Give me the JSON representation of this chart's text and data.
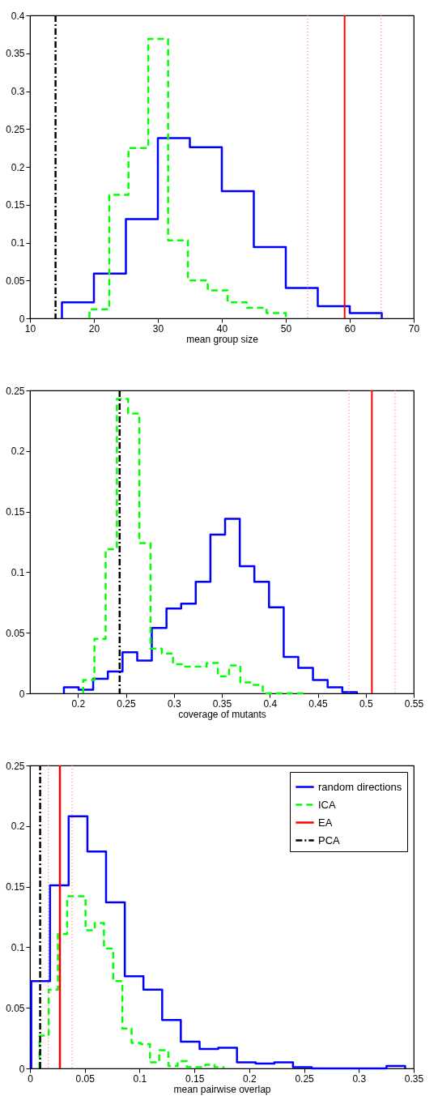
{
  "chart_data": [
    {
      "type": "step",
      "xlabel": "mean group size",
      "xlim": [
        10,
        70
      ],
      "xticks": [
        10,
        20,
        30,
        40,
        50,
        60,
        70
      ],
      "ylim": [
        0,
        0.4
      ],
      "yticks": [
        0,
        0.05,
        0.1,
        0.15,
        0.2,
        0.25,
        0.3,
        0.35,
        0.4
      ],
      "series": [
        {
          "color": "#0000ff",
          "line_style": "solid",
          "x": [
            15,
            15,
            20,
            25,
            30,
            35,
            40,
            45,
            50,
            55,
            60,
            65
          ],
          "values": [
            0,
            0.021,
            0.059,
            0.131,
            0.238,
            0.226,
            0.168,
            0.094,
            0.04,
            0.016,
            0.007,
            0
          ]
        },
        {
          "color": "#00ff00",
          "line_style": "dashed",
          "x": [
            19.3,
            19.3,
            22.4,
            25.4,
            28.5,
            31.6,
            34.7,
            37.8,
            40.9,
            43.9,
            47.0,
            50.0
          ],
          "values": [
            0,
            0.012,
            0.163,
            0.225,
            0.369,
            0.103,
            0.05,
            0.037,
            0.021,
            0.014,
            0.007,
            0
          ]
        }
      ],
      "ref_lines": [
        {
          "axis": "x",
          "value": 14.0,
          "color": "#000000",
          "line_style": "dashdot"
        },
        {
          "axis": "x",
          "value": 53.4,
          "color": "#ff6666",
          "line_style": "dotted"
        },
        {
          "axis": "x",
          "value": 59.2,
          "color": "#ff0000",
          "line_style": "solid"
        },
        {
          "axis": "x",
          "value": 64.9,
          "color": "#ff6666",
          "line_style": "dotted"
        }
      ]
    },
    {
      "type": "step",
      "xlabel": "coverage of mutants",
      "xlim": [
        0.15,
        0.55
      ],
      "xticks": [
        0.2,
        0.25,
        0.3,
        0.35,
        0.4,
        0.45,
        0.5,
        0.55
      ],
      "ylim": [
        0,
        0.25
      ],
      "yticks": [
        0,
        0.05,
        0.1,
        0.15,
        0.2,
        0.25
      ],
      "series": [
        {
          "color": "#0000ff",
          "line_style": "solid",
          "x": [
            0.1854,
            0.1854,
            0.2007,
            0.2159,
            0.2312,
            0.2465,
            0.2618,
            0.277,
            0.2923,
            0.3076,
            0.3228,
            0.3381,
            0.3534,
            0.3687,
            0.3839,
            0.3992,
            0.4145,
            0.4297,
            0.445,
            0.4603,
            0.4756,
            0.4908
          ],
          "values": [
            0,
            0.005,
            0.003,
            0.012,
            0.018,
            0.034,
            0.027,
            0.054,
            0.07,
            0.074,
            0.092,
            0.131,
            0.144,
            0.105,
            0.092,
            0.071,
            0.03,
            0.021,
            0.011,
            0.005,
            0.001,
            0
          ]
        },
        {
          "color": "#00ff00",
          "line_style": "dashed",
          "x": [
            0.2055,
            0.2055,
            0.2172,
            0.2289,
            0.2406,
            0.2523,
            0.264,
            0.2757,
            0.2874,
            0.2991,
            0.3108,
            0.3225,
            0.3342,
            0.3459,
            0.3576,
            0.3693,
            0.381,
            0.3927,
            0.4044,
            0.4161,
            0.4278,
            0.4395
          ],
          "values": [
            0,
            0.011,
            0.045,
            0.119,
            0.243,
            0.231,
            0.124,
            0.037,
            0.033,
            0.024,
            0.022,
            0.022,
            0.025,
            0.014,
            0.023,
            0.009,
            0.007,
            0,
            0,
            0,
            0,
            0
          ]
        }
      ],
      "ref_lines": [
        {
          "axis": "x",
          "value": 0.2435,
          "color": "#000000",
          "line_style": "dashdot"
        },
        {
          "axis": "x",
          "value": 0.4825,
          "color": "#ff6666",
          "line_style": "dotted"
        },
        {
          "axis": "x",
          "value": 0.5064,
          "color": "#ff0000",
          "line_style": "solid"
        },
        {
          "axis": "x",
          "value": 0.5306,
          "color": "#ff6666",
          "line_style": "dotted"
        }
      ]
    },
    {
      "type": "step",
      "xlabel": "mean pairwise overlap",
      "xlim": [
        0,
        0.35
      ],
      "xticks": [
        0,
        0.05,
        0.1,
        0.15,
        0.2,
        0.25,
        0.3,
        0.35
      ],
      "ylim": [
        0,
        0.25
      ],
      "yticks": [
        0,
        0.05,
        0.1,
        0.15,
        0.2,
        0.25
      ],
      "legend": "top right",
      "series": [
        {
          "name": "random directions",
          "color": "#0000ff",
          "line_style": "solid",
          "x": [
            0.0012,
            0.0012,
            0.0183,
            0.0353,
            0.0524,
            0.0694,
            0.0865,
            0.1035,
            0.1206,
            0.1376,
            0.1547,
            0.1717,
            0.1888,
            0.2058,
            0.2229,
            0.2399,
            0.257,
            0.274,
            0.2911,
            0.3081,
            0.3252,
            0.3422
          ],
          "values": [
            0,
            0.072,
            0.151,
            0.208,
            0.179,
            0.137,
            0.076,
            0.065,
            0.04,
            0.022,
            0.016,
            0.017,
            0.005,
            0.004,
            0.005,
            0.001,
            0,
            0,
            0,
            0,
            0.002,
            0
          ]
        },
        {
          "name": "ICA",
          "color": "#00ff00",
          "line_style": "dashed",
          "x": [
            0.0087,
            0.0087,
            0.0171,
            0.0255,
            0.0339,
            0.0423,
            0.0507,
            0.0591,
            0.0675,
            0.0759,
            0.0843,
            0.0927,
            0.1011,
            0.1095,
            0.1179,
            0.1263,
            0.1347,
            0.1431,
            0.1515,
            0.1599,
            0.1683,
            0.1767
          ],
          "values": [
            0,
            0.027,
            0.065,
            0.111,
            0.142,
            0.142,
            0.114,
            0.12,
            0.099,
            0.072,
            0.033,
            0.021,
            0.02,
            0.005,
            0.015,
            0.002,
            0.006,
            0.001,
            0.001,
            0.003,
            0.001,
            0
          ]
        },
        {
          "name": "EA",
          "type": "line",
          "color": "#ff0000",
          "line_style": "solid",
          "x": [
            0.0273,
            0.0273
          ],
          "values": [
            0,
            0.25
          ]
        },
        {
          "name": "PCA",
          "type": "line",
          "color": "#000000",
          "line_style": "dashdot",
          "x": [
            0.0093,
            0.0093
          ],
          "values": [
            0,
            0.25
          ]
        }
      ],
      "ref_lines": [
        {
          "axis": "x",
          "value": 0.0166,
          "color": "#ff6666",
          "line_style": "dotted"
        },
        {
          "axis": "x",
          "value": 0.0385,
          "color": "#ff6666",
          "line_style": "dotted"
        }
      ]
    }
  ]
}
